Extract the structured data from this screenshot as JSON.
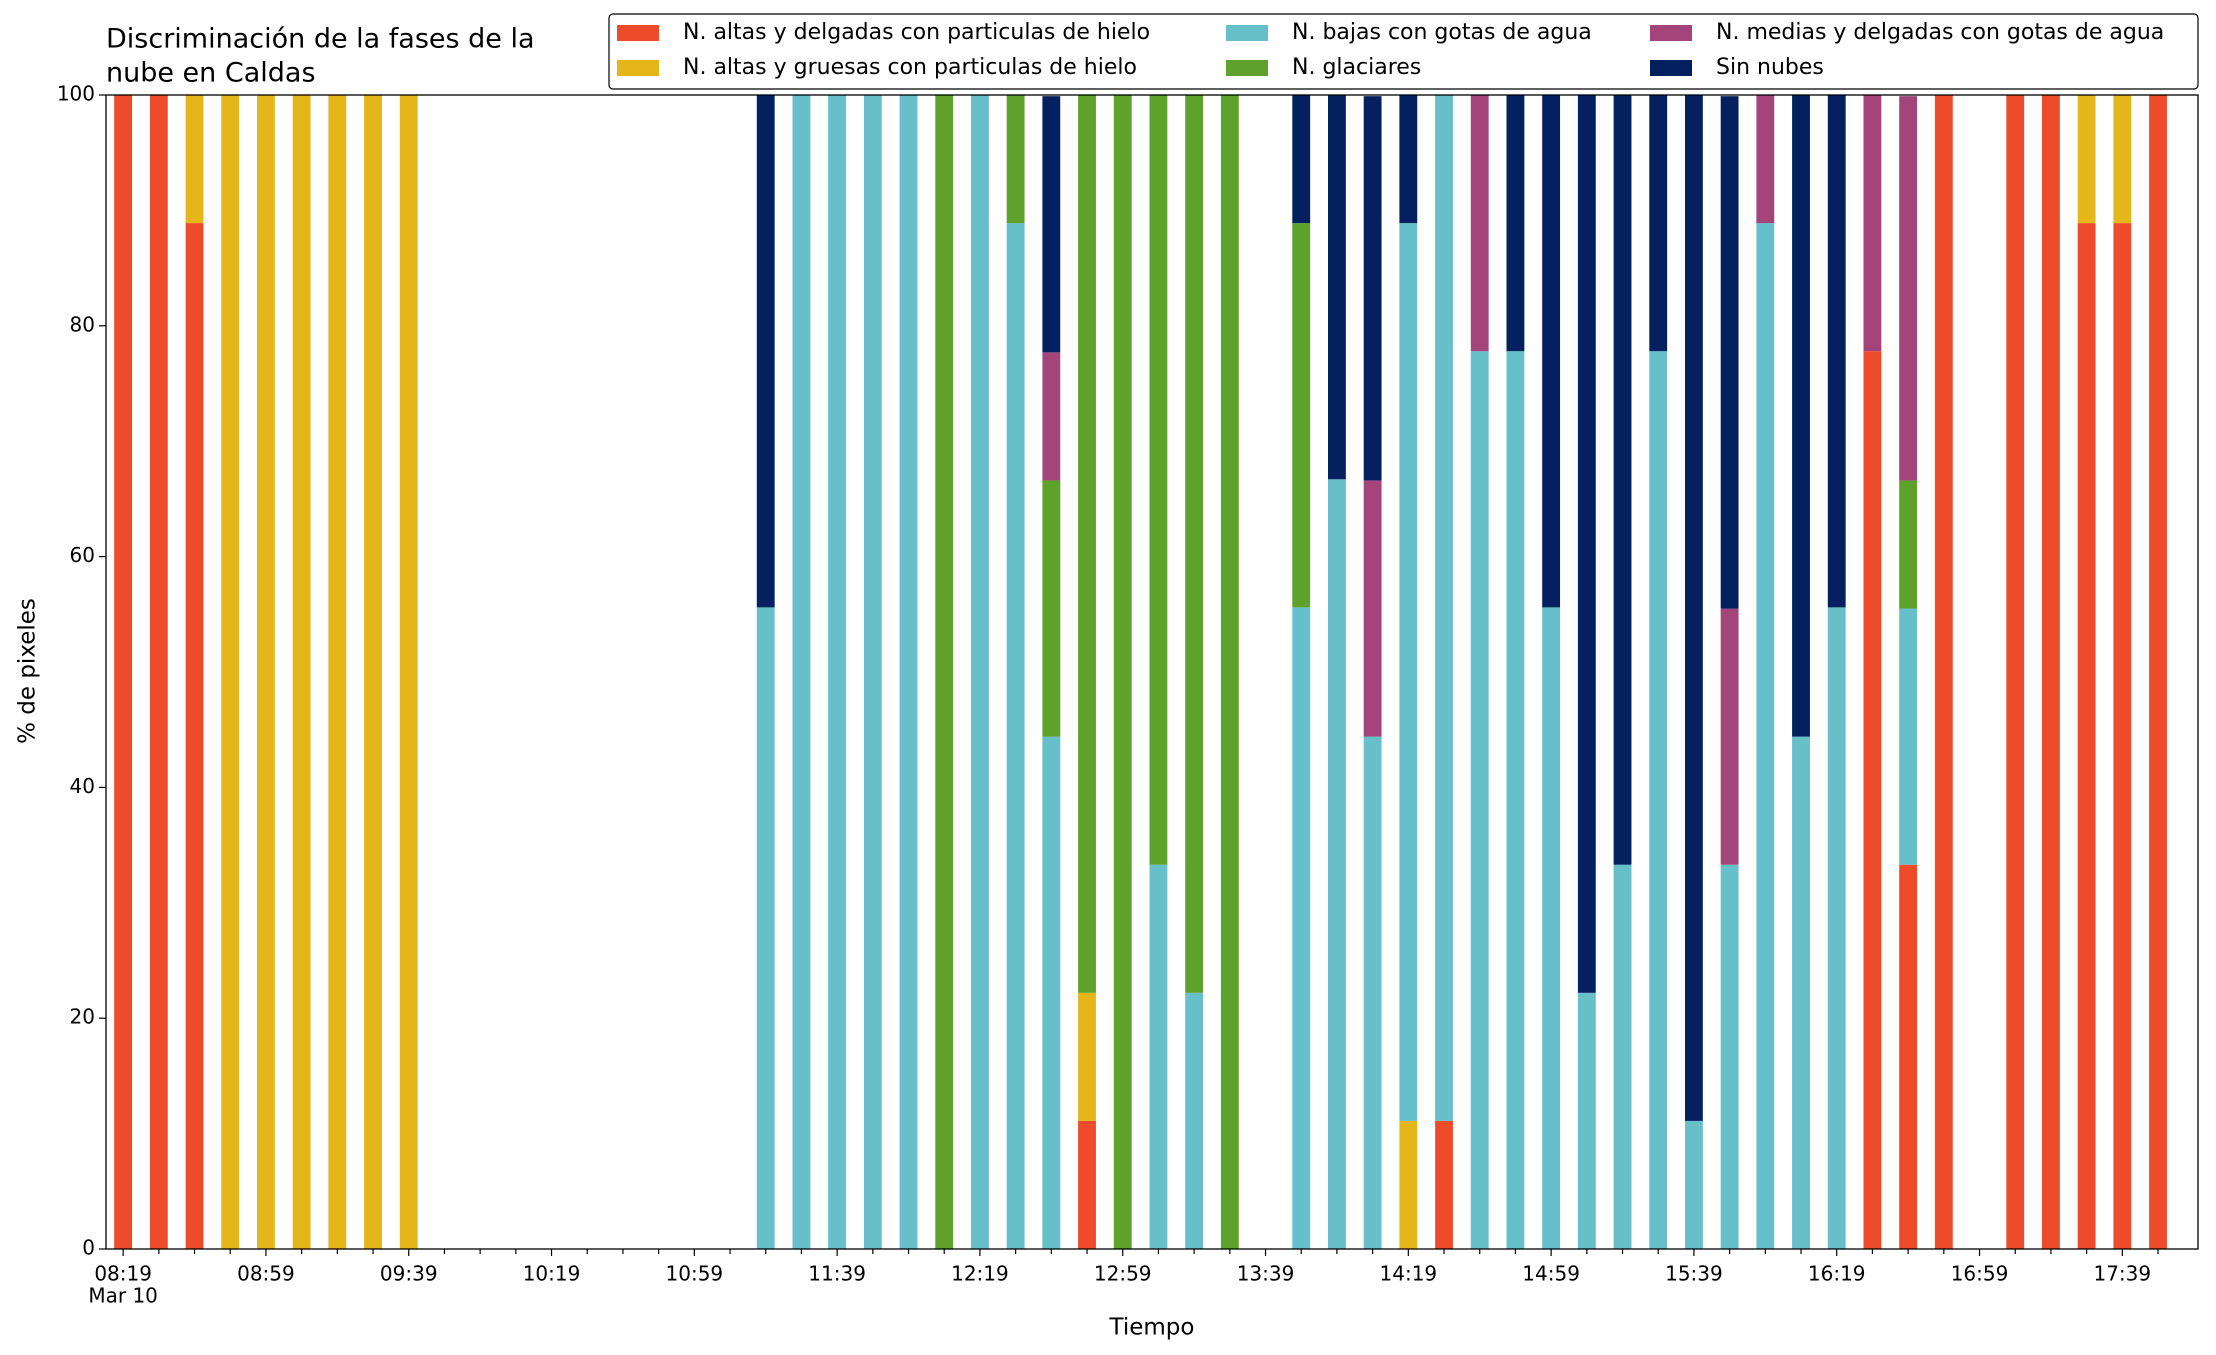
{
  "chart_data": {
    "type": "stacked_bar",
    "title": [
      "Discriminación de la fases de la",
      "nube en Caldas"
    ],
    "xlabel": "Tiempo",
    "ylabel": "% de pixeles",
    "categories": [
      "08:19",
      null,
      null,
      null,
      "08:59",
      null,
      null,
      null,
      "09:39",
      null,
      null,
      null,
      "10:19",
      null,
      null,
      null,
      "10:59",
      null,
      null,
      null,
      "11:39",
      null,
      null,
      null,
      "12:19",
      null,
      null,
      null,
      "12:59",
      null,
      null,
      null,
      "13:39",
      null,
      null,
      null,
      "14:19",
      null,
      null,
      null,
      "14:59",
      null,
      null,
      null,
      "15:39",
      null,
      null,
      null,
      "16:19",
      null,
      null,
      null,
      "16:59",
      null,
      null,
      null,
      "17:39",
      null
    ],
    "x_date_label": "Mar 10",
    "ylim": [
      0,
      100
    ],
    "yticks": [
      0,
      20,
      40,
      60,
      80,
      100
    ],
    "grid": false,
    "legend_position": "top-right",
    "series": [
      {
        "name": "N. altas y delgadas con particulas de hielo",
        "color": "#ee4b2b",
        "values": [
          100,
          100,
          88.9,
          0,
          0,
          0,
          0,
          0,
          0,
          0,
          0,
          0,
          0,
          0,
          0,
          0,
          0,
          0,
          0,
          0,
          0,
          0,
          0,
          0,
          0,
          0,
          0,
          11.1,
          0,
          0,
          0,
          0,
          0,
          0,
          0,
          0,
          0,
          11.1,
          0,
          0,
          0,
          0,
          0,
          0,
          0,
          0,
          0,
          0,
          0,
          77.8,
          33.3,
          100,
          0,
          100,
          100,
          88.9,
          88.9,
          100
        ]
      },
      {
        "name": "N. altas y gruesas con particulas de hielo",
        "color": "#e4b61a",
        "values": [
          0,
          0,
          11.1,
          100,
          100,
          100,
          100,
          100,
          100,
          0,
          0,
          0,
          0,
          0,
          0,
          0,
          0,
          0,
          0,
          0,
          0,
          0,
          0,
          0,
          0,
          0,
          0,
          11.1,
          0,
          0,
          0,
          0,
          0,
          0,
          0,
          0,
          11.1,
          0,
          0,
          0,
          0,
          0,
          0,
          0,
          0,
          0,
          0,
          0,
          0,
          0,
          0,
          0,
          0,
          0,
          0,
          11.1,
          11.1,
          0
        ]
      },
      {
        "name": "N. bajas con gotas de agua",
        "color": "#67bfca",
        "values": [
          0,
          0,
          0,
          0,
          0,
          0,
          0,
          0,
          0,
          0,
          0,
          0,
          0,
          0,
          0,
          0,
          0,
          0,
          55.6,
          100,
          100,
          100,
          100,
          0,
          100,
          88.9,
          44.4,
          0,
          0,
          33.3,
          22.2,
          0,
          0,
          55.6,
          66.7,
          44.4,
          77.8,
          88.9,
          77.8,
          77.8,
          55.6,
          22.2,
          33.3,
          77.8,
          11.1,
          33.3,
          88.9,
          44.4,
          55.6,
          0,
          22.2,
          0,
          0,
          0,
          0,
          0,
          0,
          0
        ]
      },
      {
        "name": "N. glaciares",
        "color": "#5ea12b",
        "values": [
          0,
          0,
          0,
          0,
          0,
          0,
          0,
          0,
          0,
          0,
          0,
          0,
          0,
          0,
          0,
          0,
          0,
          0,
          0,
          0,
          0,
          0,
          0,
          100,
          0,
          11.1,
          22.2,
          77.8,
          100,
          66.7,
          77.8,
          100,
          0,
          33.3,
          0,
          0,
          0,
          0,
          0,
          0,
          0,
          0,
          0,
          0,
          0,
          0,
          0,
          0,
          0,
          0,
          11.1,
          0,
          0,
          0,
          0,
          0,
          0,
          0
        ]
      },
      {
        "name": "N. medias y delgadas con gotas de agua",
        "color": "#a3457b",
        "values": [
          0,
          0,
          0,
          0,
          0,
          0,
          0,
          0,
          0,
          0,
          0,
          0,
          0,
          0,
          0,
          0,
          0,
          0,
          0,
          0,
          0,
          0,
          0,
          0,
          0,
          0,
          11.1,
          0,
          0,
          0,
          0,
          0,
          0,
          0,
          0,
          22.2,
          0,
          0,
          22.2,
          0,
          0,
          0,
          0,
          0,
          0,
          22.2,
          11.1,
          0,
          0,
          22.2,
          33.3,
          0,
          0,
          0,
          0,
          0,
          0,
          0
        ]
      },
      {
        "name": "Sin nubes",
        "color": "#04205e",
        "values": [
          0,
          0,
          0,
          0,
          0,
          0,
          0,
          0,
          0,
          0,
          0,
          0,
          0,
          0,
          0,
          0,
          0,
          0,
          44.4,
          0,
          0,
          0,
          0,
          0,
          0,
          0,
          22.2,
          0,
          0,
          0,
          0,
          0,
          0,
          11.1,
          33.3,
          33.3,
          11.1,
          0,
          0,
          22.2,
          44.4,
          77.8,
          66.7,
          22.2,
          88.9,
          44.4,
          0,
          55.6,
          44.4,
          0,
          0,
          0,
          0,
          0,
          0,
          0,
          0,
          0
        ]
      }
    ]
  }
}
